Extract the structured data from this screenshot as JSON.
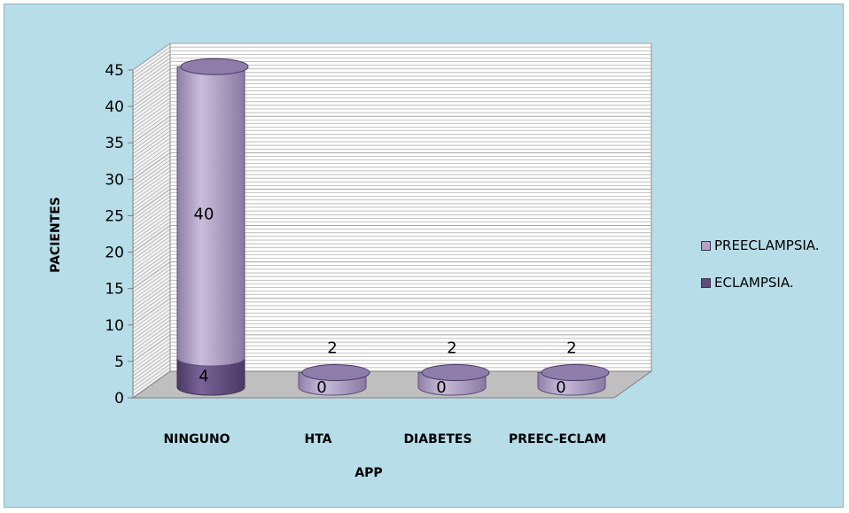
{
  "chart_data": {
    "type": "bar",
    "categories": [
      "NINGUNO",
      "HTA",
      "DIABETES",
      "PREEC-ECLAM"
    ],
    "series": [
      {
        "name": "ECLAMPSIA.",
        "values": [
          4,
          0,
          0,
          0
        ],
        "color": "#604a7b"
      },
      {
        "name": "PREECLAMPSIA.",
        "values": [
          40,
          2,
          2,
          2
        ],
        "color": "#b3a2c7"
      }
    ],
    "stacked": true,
    "style": "3d-cylinder",
    "xlabel": "APP",
    "ylabel": "PACIENTES",
    "ylim": [
      0,
      45
    ],
    "yticks": [
      0,
      5,
      10,
      15,
      20,
      25,
      30,
      35,
      40,
      45
    ],
    "grid": true,
    "legend_position": "right"
  },
  "colors": {
    "background": "#b7dde8",
    "wall": "#ffffff",
    "gridline": "#a6a6a6",
    "floor": "#bfbfbf"
  }
}
